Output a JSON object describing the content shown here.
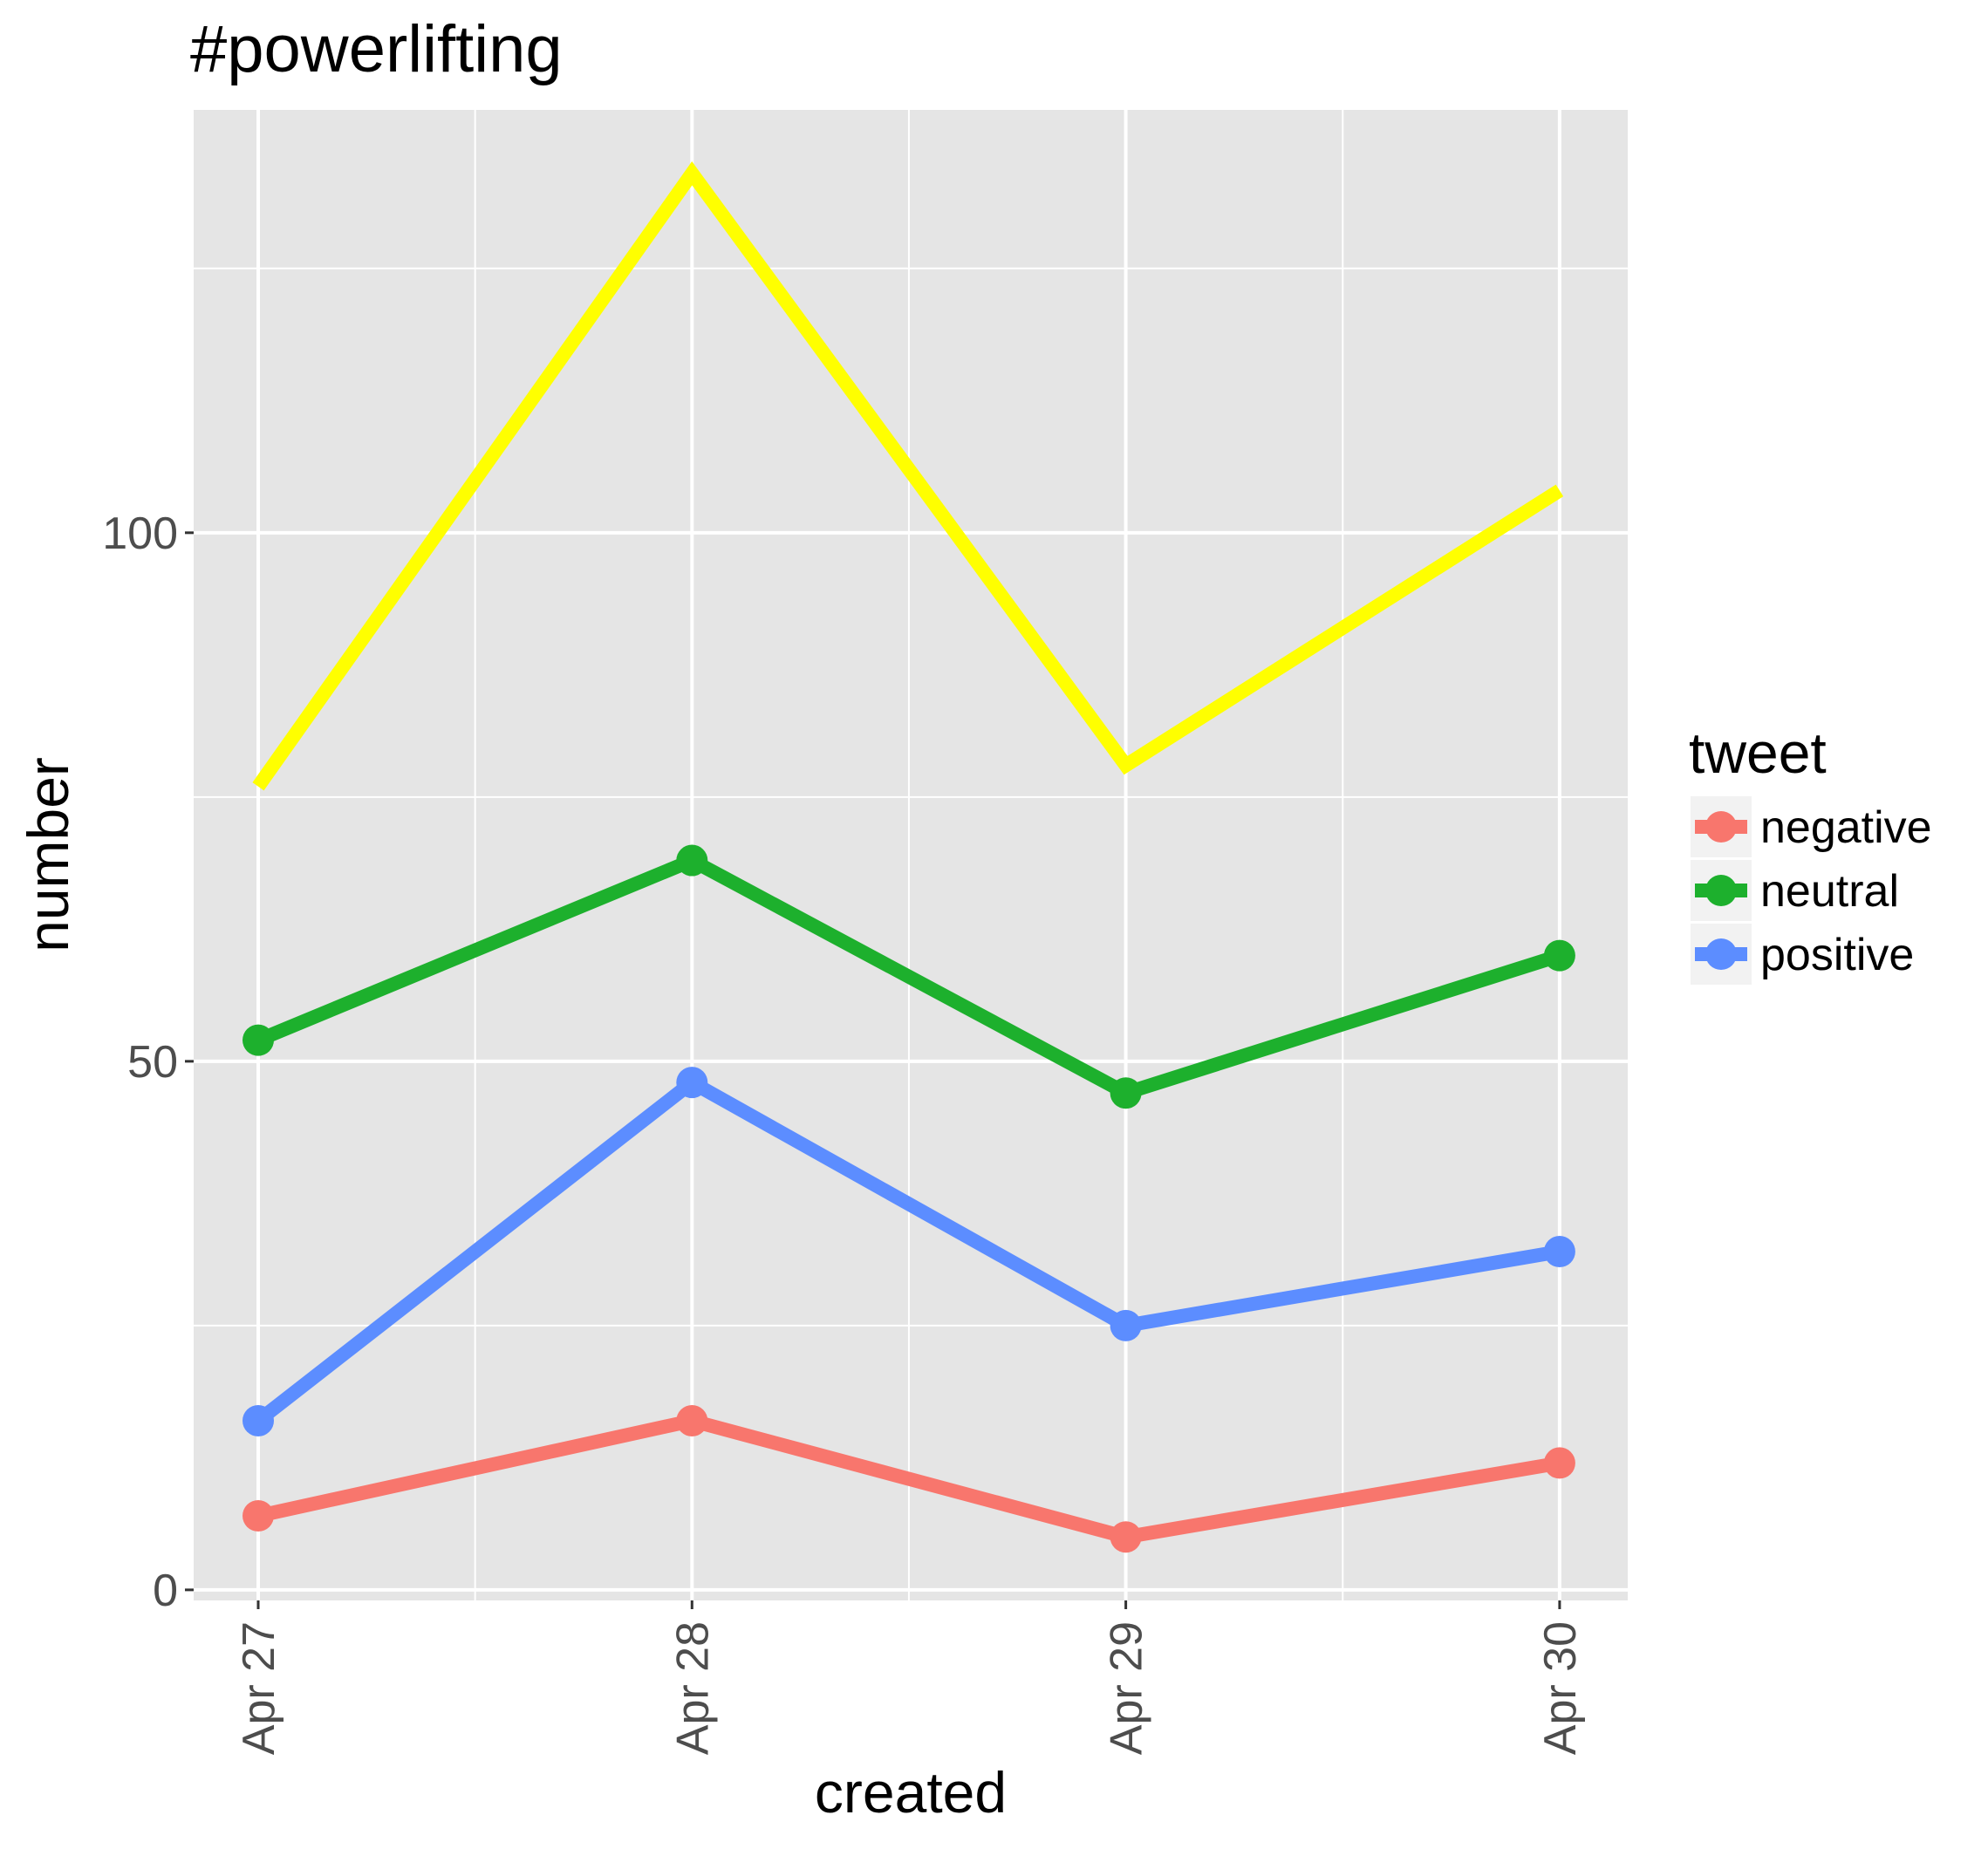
{
  "chart_data": {
    "type": "line",
    "title": "#powerlifting",
    "xlabel": "created",
    "ylabel": "number",
    "categories": [
      "Apr 27",
      "Apr 28",
      "Apr 29",
      "Apr 30"
    ],
    "ylim": [
      -1,
      140
    ],
    "y_ticks": [
      0,
      50,
      100
    ],
    "y_tick_labels": [
      "0",
      "50",
      "100"
    ],
    "grid": true,
    "panel_background": "#e5e5e5",
    "legend": {
      "title": "tweet",
      "position": "right",
      "entries": [
        "negative",
        "neutral",
        "positive"
      ]
    },
    "series": [
      {
        "name": "negative",
        "color": "#f8766d",
        "points": true,
        "values": [
          7,
          16,
          5,
          12
        ]
      },
      {
        "name": "neutral",
        "color": "#1db02d",
        "points": true,
        "values": [
          52,
          69,
          47,
          60
        ]
      },
      {
        "name": "positive",
        "color": "#5c8dff",
        "points": true,
        "values": [
          16,
          48,
          25,
          32
        ]
      },
      {
        "color": "#ffff00",
        "points": false,
        "values": [
          76,
          134,
          78,
          104
        ]
      }
    ]
  }
}
